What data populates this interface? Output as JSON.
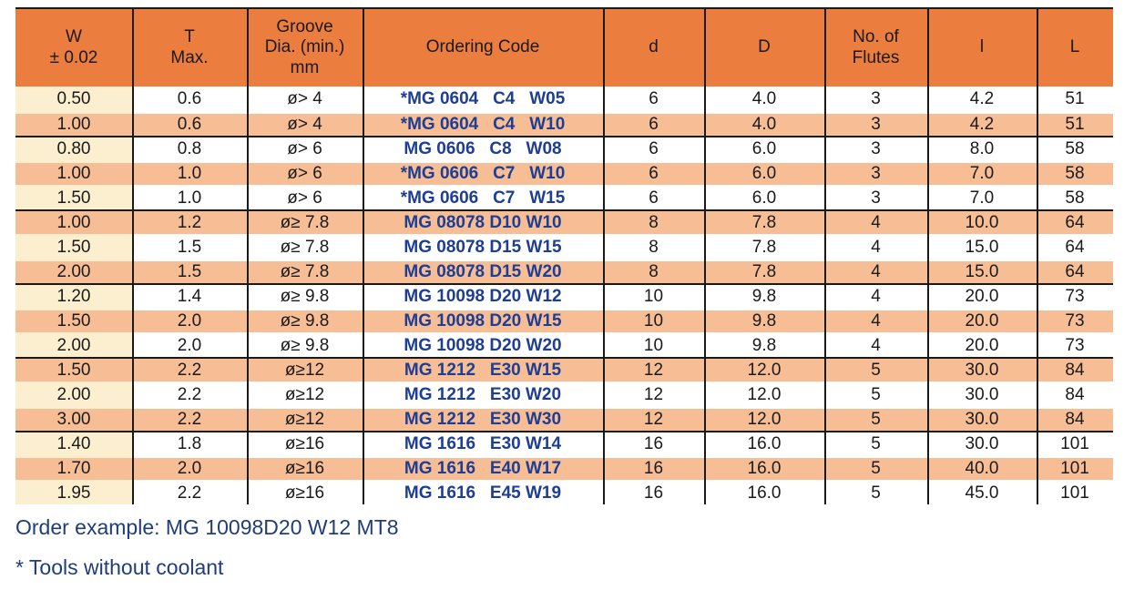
{
  "table": {
    "columns": [
      {
        "id": "w",
        "label": "W\n± 0.02"
      },
      {
        "id": "t",
        "label": "T\nMax."
      },
      {
        "id": "groove",
        "label": "Groove\nDia. (min.)\nmm"
      },
      {
        "id": "code",
        "label": "Ordering Code"
      },
      {
        "id": "d",
        "label": "d"
      },
      {
        "id": "D",
        "label": "D"
      },
      {
        "id": "flutes",
        "label": "No. of\nFlutes"
      },
      {
        "id": "l",
        "label": "l"
      },
      {
        "id": "L",
        "label": "L"
      }
    ],
    "rows": [
      {
        "w": "0.50",
        "t": "0.6",
        "groove": "ø> 4",
        "code": "*MG 0604   C4   W05",
        "d": "6",
        "D": "4.0",
        "flutes": "3",
        "l": "4.2",
        "L": "51",
        "shaded": false,
        "sep": "none"
      },
      {
        "w": "1.00",
        "t": "0.6",
        "groove": "ø> 4",
        "code": "*MG 0604   C4   W10",
        "d": "6",
        "D": "4.0",
        "flutes": "3",
        "l": "4.2",
        "L": "51",
        "shaded": true,
        "sep": "gap"
      },
      {
        "w": "0.80",
        "t": "0.8",
        "groove": "ø> 6",
        "code": "MG 0606   C8   W08",
        "d": "6",
        "D": "6.0",
        "flutes": "3",
        "l": "8.0",
        "L": "58",
        "shaded": false,
        "sep": "group"
      },
      {
        "w": "1.00",
        "t": "1.0",
        "groove": "ø> 6",
        "code": "*MG 0606   C7   W10",
        "d": "6",
        "D": "6.0",
        "flutes": "3",
        "l": "7.0",
        "L": "58",
        "shaded": true,
        "sep": "gap"
      },
      {
        "w": "1.50",
        "t": "1.0",
        "groove": "ø> 6",
        "code": "*MG 0606   C7   W15",
        "d": "6",
        "D": "6.0",
        "flutes": "3",
        "l": "7.0",
        "L": "58",
        "shaded": false,
        "sep": "gap"
      },
      {
        "w": "1.00",
        "t": "1.2",
        "groove": "ø≥ 7.8",
        "code": "MG 08078 D10 W10",
        "d": "8",
        "D": "7.8",
        "flutes": "4",
        "l": "10.0",
        "L": "64",
        "shaded": true,
        "sep": "group"
      },
      {
        "w": "1.50",
        "t": "1.5",
        "groove": "ø≥ 7.8",
        "code": "MG 08078 D15 W15",
        "d": "8",
        "D": "7.8",
        "flutes": "4",
        "l": "15.0",
        "L": "64",
        "shaded": false,
        "sep": "gap"
      },
      {
        "w": "2.00",
        "t": "1.5",
        "groove": "ø≥ 7.8",
        "code": "MG 08078 D15 W20",
        "d": "8",
        "D": "7.8",
        "flutes": "4",
        "l": "15.0",
        "L": "64",
        "shaded": true,
        "sep": "gap"
      },
      {
        "w": "1.20",
        "t": "1.4",
        "groove": "ø≥ 9.8",
        "code": "MG 10098 D20 W12",
        "d": "10",
        "D": "9.8",
        "flutes": "4",
        "l": "20.0",
        "L": "73",
        "shaded": false,
        "sep": "group"
      },
      {
        "w": "1.50",
        "t": "2.0",
        "groove": "ø≥ 9.8",
        "code": "MG 10098 D20 W15",
        "d": "10",
        "D": "9.8",
        "flutes": "4",
        "l": "20.0",
        "L": "73",
        "shaded": true,
        "sep": "gap"
      },
      {
        "w": "2.00",
        "t": "2.0",
        "groove": "ø≥ 9.8",
        "code": "MG 10098 D20 W20",
        "d": "10",
        "D": "9.8",
        "flutes": "4",
        "l": "20.0",
        "L": "73",
        "shaded": false,
        "sep": "gap"
      },
      {
        "w": "1.50",
        "t": "2.2",
        "groove": "ø≥12",
        "code": "MG 1212   E30 W15",
        "d": "12",
        "D": "12.0",
        "flutes": "5",
        "l": "30.0",
        "L": "84",
        "shaded": true,
        "sep": "group"
      },
      {
        "w": "2.00",
        "t": "2.2",
        "groove": "ø≥12",
        "code": "MG 1212   E30 W20",
        "d": "12",
        "D": "12.0",
        "flutes": "5",
        "l": "30.0",
        "L": "84",
        "shaded": false,
        "sep": "gap"
      },
      {
        "w": "3.00",
        "t": "2.2",
        "groove": "ø≥12",
        "code": "MG 1212   E30 W30",
        "d": "12",
        "D": "12.0",
        "flutes": "5",
        "l": "30.0",
        "L": "84",
        "shaded": true,
        "sep": "gap"
      },
      {
        "w": "1.40",
        "t": "1.8",
        "groove": "ø≥16",
        "code": "MG 1616   E30 W14",
        "d": "16",
        "D": "16.0",
        "flutes": "5",
        "l": "30.0",
        "L": "101",
        "shaded": false,
        "sep": "group"
      },
      {
        "w": "1.70",
        "t": "2.0",
        "groove": "ø≥16",
        "code": "MG 1616   E40 W17",
        "d": "16",
        "D": "16.0",
        "flutes": "5",
        "l": "40.0",
        "L": "101",
        "shaded": true,
        "sep": "gap"
      },
      {
        "w": "1.95",
        "t": "2.2",
        "groove": "ø≥16",
        "code": "MG 1616   E45 W19",
        "d": "16",
        "D": "16.0",
        "flutes": "5",
        "l": "45.0",
        "L": "101",
        "shaded": false,
        "sep": "gap"
      }
    ]
  },
  "footer": {
    "order_example": "Order example: MG 10098D20 W12 MT8",
    "coolant_note": "* Tools without coolant"
  },
  "colors": {
    "header_orange": "#EB7D3F",
    "row_salmon": "#F7BE96",
    "first_col_cream": "#FCEFD0",
    "code_navy": "#1D3E94",
    "footer_navy": "#1F3D7A",
    "rule_black": "#1A1A1A"
  }
}
